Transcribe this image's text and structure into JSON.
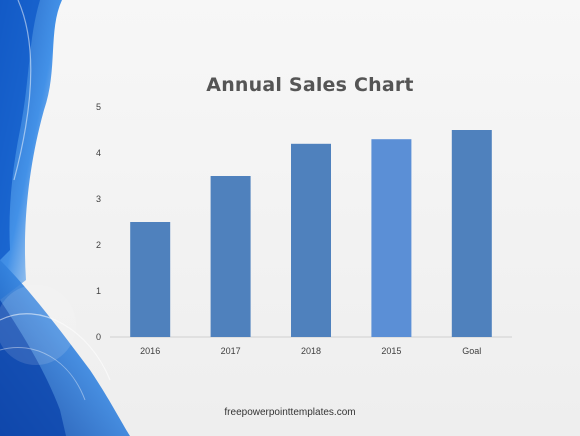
{
  "slide": {
    "footer": "freepowerpointtemplates.com"
  },
  "colors": {
    "bar": "#4f81bd",
    "bar_highlight": "#5b8fd6",
    "axis": "#d0d0d0",
    "tick_text": "#404040",
    "title": "#555555",
    "decoration_blue": "#1f6fd1"
  },
  "chart_data": {
    "type": "bar",
    "title": "Annual Sales Chart",
    "xlabel": "",
    "ylabel": "",
    "categories": [
      "2016",
      "2017",
      "2018",
      "2015",
      "Goal"
    ],
    "values": [
      2.5,
      3.5,
      4.2,
      4.3,
      4.5
    ],
    "yticks": [
      "0",
      "1",
      "2",
      "3",
      "4",
      "5"
    ],
    "ylim": [
      0,
      5
    ],
    "grid": false,
    "legend": "none"
  }
}
